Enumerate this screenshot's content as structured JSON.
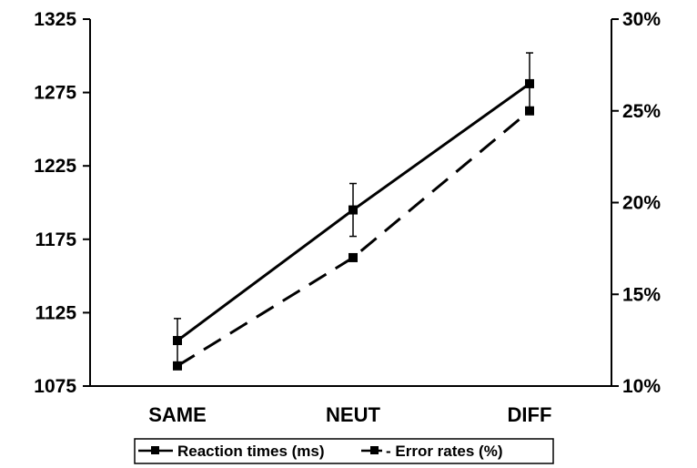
{
  "chart_data": {
    "type": "line",
    "categories": [
      "SAME",
      "NEUT",
      "DIFF"
    ],
    "y_left": {
      "ylim": [
        1075,
        1325
      ],
      "ticks": [
        "1325",
        "1275",
        "1225",
        "1175",
        "1125",
        "1075"
      ],
      "tick_values": [
        1325,
        1275,
        1225,
        1175,
        1125,
        1075
      ]
    },
    "y_right": {
      "ylim": [
        0.1,
        0.3
      ],
      "ticks": [
        "30%",
        "25%",
        "20%",
        "15%",
        "10%"
      ],
      "tick_values": [
        0.3,
        0.25,
        0.2,
        0.15,
        0.1
      ]
    },
    "series": [
      {
        "name": "Reaction times (ms)",
        "axis": "left",
        "style": "solid",
        "values": [
          1106,
          1195,
          1281
        ],
        "error": [
          15,
          18,
          21
        ]
      },
      {
        "name": "Error rates (%)",
        "axis": "right",
        "style": "dashed",
        "values": [
          0.111,
          0.17,
          0.25
        ]
      }
    ],
    "legend": {
      "placement": "bottom",
      "labels": [
        "Reaction times (ms)",
        "- Error rates (%)"
      ]
    },
    "grid": false,
    "colors": {
      "line": "#000000"
    }
  }
}
